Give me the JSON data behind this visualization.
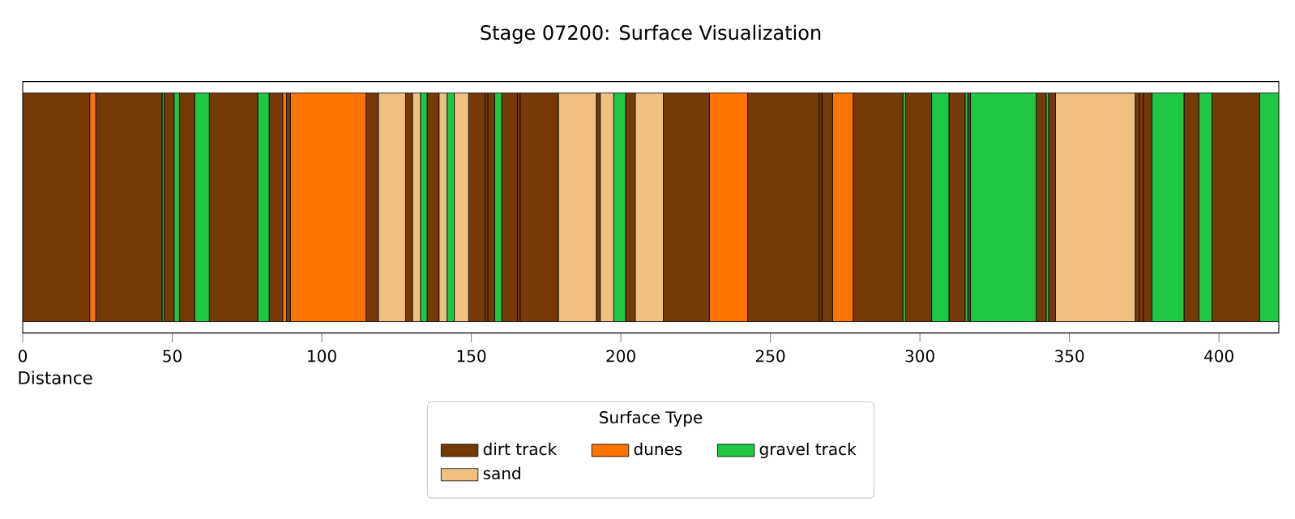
{
  "chart_data": {
    "type": "bar",
    "orientation": "horizontal",
    "stacked": true,
    "title": "Stage 07200: Surface Visualization",
    "xlabel": "Distance",
    "legend_title": "Surface Type",
    "legend": "bottom",
    "tick_labels": "x",
    "categories": [
      null
    ],
    "xlim": [
      0,
      420
    ],
    "xticks": [
      0,
      50,
      100,
      150,
      200,
      250,
      300,
      350,
      400
    ],
    "series": [
      {
        "name": "dirt track",
        "color": "#763a07",
        "values": [
          22.4
        ]
      },
      {
        "name": "dunes",
        "color": "#ff7300",
        "values": [
          2.0
        ]
      },
      {
        "color": "#763a07",
        "values": [
          22.2
        ]
      },
      {
        "name": "gravel track",
        "color": "#1ec843",
        "values": [
          0.7
        ]
      },
      {
        "color": "#763a07",
        "values": [
          3.3
        ]
      },
      {
        "color": "#1ec843",
        "values": [
          1.8
        ]
      },
      {
        "color": "#763a07",
        "values": [
          5.1
        ]
      },
      {
        "color": "#1ec843",
        "values": [
          4.9
        ]
      },
      {
        "color": "#763a07",
        "values": [
          16.2
        ]
      },
      {
        "color": "#1ec843",
        "values": [
          3.8
        ]
      },
      {
        "color": "#763a07",
        "values": [
          4.5
        ]
      },
      {
        "color": "#ff7300",
        "values": [
          1.3
        ]
      },
      {
        "color": "#763a07",
        "values": [
          1.3
        ]
      },
      {
        "color": "#ff7300",
        "values": [
          25.3
        ]
      },
      {
        "color": "#763a07",
        "values": [
          4.1
        ]
      },
      {
        "name": "sand",
        "color": "#f0c080",
        "values": [
          9.1
        ]
      },
      {
        "color": "#763a07",
        "values": [
          2.3
        ]
      },
      {
        "color": "#f0c080",
        "values": [
          2.7
        ]
      },
      {
        "color": "#1ec843",
        "values": [
          2.2
        ]
      },
      {
        "color": "#763a07",
        "values": [
          4.0
        ]
      },
      {
        "color": "#f0c080",
        "values": [
          2.7
        ]
      },
      {
        "color": "#1ec843",
        "values": [
          2.4
        ]
      },
      {
        "color": "#f0c080",
        "values": [
          4.8
        ]
      },
      {
        "color": "#763a07",
        "values": [
          5.5
        ]
      },
      {
        "color": "#763a07",
        "values": [
          0.9
        ]
      },
      {
        "color": "#763a07",
        "values": [
          2.3
        ]
      },
      {
        "color": "#1ec843",
        "values": [
          2.4
        ]
      },
      {
        "color": "#763a07",
        "values": [
          5.2
        ]
      },
      {
        "color": "#763a07",
        "values": [
          0.9
        ]
      },
      {
        "color": "#763a07",
        "values": [
          12.8
        ]
      },
      {
        "color": "#f0c080",
        "values": [
          12.7
        ]
      },
      {
        "color": "#763a07",
        "values": [
          1.3
        ]
      },
      {
        "color": "#f0c080",
        "values": [
          4.5
        ]
      },
      {
        "color": "#1ec843",
        "values": [
          4.0
        ]
      },
      {
        "color": "#763a07",
        "values": [
          3.2
        ]
      },
      {
        "color": "#f0c080",
        "values": [
          9.4
        ]
      },
      {
        "color": "#763a07",
        "values": [
          15.4
        ]
      },
      {
        "color": "#ff7300",
        "values": [
          12.8
        ]
      },
      {
        "color": "#763a07",
        "values": [
          23.9
        ]
      },
      {
        "color": "#763a07",
        "values": [
          0.9
        ]
      },
      {
        "color": "#763a07",
        "values": [
          3.6
        ]
      },
      {
        "color": "#ff7300",
        "values": [
          6.9
        ]
      },
      {
        "color": "#763a07",
        "values": [
          16.6
        ]
      },
      {
        "color": "#1ec843",
        "values": [
          0.9
        ]
      },
      {
        "color": "#763a07",
        "values": [
          8.7
        ]
      },
      {
        "color": "#1ec843",
        "values": [
          5.8
        ]
      },
      {
        "color": "#763a07",
        "values": [
          5.4
        ]
      },
      {
        "color": "#1ec843",
        "values": [
          0.9
        ]
      },
      {
        "color": "#763a07",
        "values": [
          0.9
        ]
      },
      {
        "color": "#1ec843",
        "values": [
          22.0
        ]
      },
      {
        "color": "#763a07",
        "values": [
          3.3
        ]
      },
      {
        "color": "#1ec843",
        "values": [
          0.8
        ]
      },
      {
        "color": "#763a07",
        "values": [
          2.3
        ]
      },
      {
        "color": "#f0c080",
        "values": [
          26.7
        ]
      },
      {
        "color": "#763a07",
        "values": [
          1.3
        ]
      },
      {
        "color": "#763a07",
        "values": [
          1.4
        ]
      },
      {
        "color": "#763a07",
        "values": [
          2.9
        ]
      },
      {
        "color": "#1ec843",
        "values": [
          10.7
        ]
      },
      {
        "color": "#763a07",
        "values": [
          5.0
        ]
      },
      {
        "color": "#1ec843",
        "values": [
          4.4
        ]
      },
      {
        "color": "#763a07",
        "values": [
          15.9
        ]
      },
      {
        "color": "#1ec843",
        "values": [
          6.4
        ]
      }
    ]
  }
}
